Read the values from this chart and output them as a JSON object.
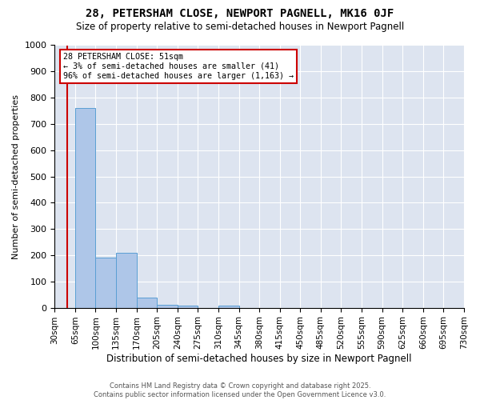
{
  "title": "28, PETERSHAM CLOSE, NEWPORT PAGNELL, MK16 0JF",
  "subtitle": "Size of property relative to semi-detached houses in Newport Pagnell",
  "xlabel": "Distribution of semi-detached houses by size in Newport Pagnell",
  "ylabel": "Number of semi-detached properties",
  "footnote": "Contains HM Land Registry data © Crown copyright and database right 2025.\nContains public sector information licensed under the Open Government Licence v3.0.",
  "bin_labels": [
    "30sqm",
    "65sqm",
    "100sqm",
    "135sqm",
    "170sqm",
    "205sqm",
    "240sqm",
    "275sqm",
    "310sqm",
    "345sqm",
    "380sqm",
    "415sqm",
    "450sqm",
    "485sqm",
    "520sqm",
    "555sqm",
    "590sqm",
    "625sqm",
    "660sqm",
    "695sqm",
    "730sqm"
  ],
  "bin_edges": [
    30,
    65,
    100,
    135,
    170,
    205,
    240,
    275,
    310,
    345,
    380,
    415,
    450,
    485,
    520,
    555,
    590,
    625,
    660,
    695,
    730
  ],
  "bar_heights": [
    0,
    760,
    190,
    210,
    38,
    10,
    8,
    0,
    8,
    0,
    0,
    0,
    0,
    0,
    0,
    0,
    0,
    0,
    0,
    0
  ],
  "bar_color": "#aec6e8",
  "bar_edge_color": "#5a9fd4",
  "property_size": 51,
  "property_label": "28 PETERSHAM CLOSE: 51sqm",
  "pct_smaller": 3,
  "count_smaller": 41,
  "pct_larger": 96,
  "count_larger": 1163,
  "vline_color": "#cc0000",
  "annotation_box_color": "#cc0000",
  "ylim": [
    0,
    1000
  ],
  "yticks": [
    0,
    100,
    200,
    300,
    400,
    500,
    600,
    700,
    800,
    900,
    1000
  ],
  "background_color": "#dde4f0",
  "title_fontsize": 10,
  "subtitle_fontsize": 8.5
}
